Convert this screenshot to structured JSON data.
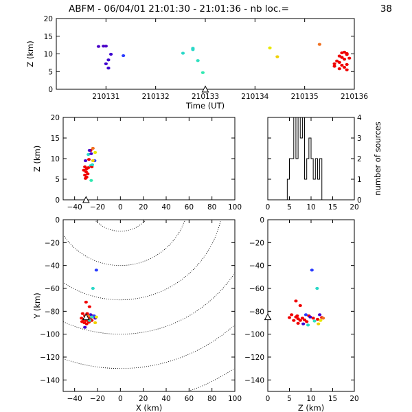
{
  "title": "ABFM - 06/04/01 21:01:30 - 21:01:36 - nb loc.=",
  "count": "38",
  "chart_data": [
    {
      "id": "time-height",
      "type": "scatter",
      "xlabel": "Time (UT)",
      "ylabel": "Z (km)",
      "xlim": [
        210130.0,
        210136.0
      ],
      "ylim": [
        0,
        20
      ],
      "xticks": [
        210131,
        210132,
        210133,
        210134,
        210135,
        210136
      ],
      "xtick_labels": [
        "210131",
        "210132",
        "210133",
        "210134",
        "210135",
        "210136"
      ],
      "yticks": [
        0,
        5,
        10,
        15,
        20
      ],
      "ytick_labels": [
        "0",
        "5",
        "10",
        "15",
        "20"
      ],
      "station_marker": {
        "x": 210133.0,
        "y": 0
      },
      "points": [
        {
          "x": 210130.85,
          "y": 12.1,
          "c": "#4a00c8"
        },
        {
          "x": 210130.95,
          "y": 12.2,
          "c": "#4a00c8"
        },
        {
          "x": 210131.0,
          "y": 12.2,
          "c": "#4a00c8"
        },
        {
          "x": 210131.1,
          "y": 9.9,
          "c": "#3c00d0"
        },
        {
          "x": 210131.05,
          "y": 8.3,
          "c": "#3c00d0"
        },
        {
          "x": 210131.0,
          "y": 7.2,
          "c": "#3c00d0"
        },
        {
          "x": 210131.05,
          "y": 6.0,
          "c": "#3c00d0"
        },
        {
          "x": 210131.35,
          "y": 9.5,
          "c": "#2a3cff"
        },
        {
          "x": 210132.55,
          "y": 10.2,
          "c": "#2ad8c8"
        },
        {
          "x": 210132.75,
          "y": 11.2,
          "c": "#2ad8c8"
        },
        {
          "x": 210132.75,
          "y": 11.6,
          "c": "#2ad8c8"
        },
        {
          "x": 210132.85,
          "y": 8.1,
          "c": "#30e0c0"
        },
        {
          "x": 210132.95,
          "y": 4.7,
          "c": "#30e8b0"
        },
        {
          "x": 210134.3,
          "y": 11.7,
          "c": "#e8e800"
        },
        {
          "x": 210134.45,
          "y": 9.2,
          "c": "#f0d000"
        },
        {
          "x": 210135.3,
          "y": 12.7,
          "c": "#f07020"
        },
        {
          "x": 210135.75,
          "y": 10.3,
          "c": "#f00000"
        },
        {
          "x": 210135.8,
          "y": 10.5,
          "c": "#f00000"
        },
        {
          "x": 210135.85,
          "y": 9.8,
          "c": "#f00000"
        },
        {
          "x": 210135.7,
          "y": 9.4,
          "c": "#f00000"
        },
        {
          "x": 210135.75,
          "y": 9.0,
          "c": "#f00000"
        },
        {
          "x": 210135.8,
          "y": 8.5,
          "c": "#f00000"
        },
        {
          "x": 210135.65,
          "y": 8.0,
          "c": "#f00000"
        },
        {
          "x": 210135.7,
          "y": 7.6,
          "c": "#f00000"
        },
        {
          "x": 210135.6,
          "y": 7.2,
          "c": "#f00000"
        },
        {
          "x": 210135.75,
          "y": 6.8,
          "c": "#f00000"
        },
        {
          "x": 210135.85,
          "y": 7.0,
          "c": "#f00000"
        },
        {
          "x": 210135.8,
          "y": 6.2,
          "c": "#f00000"
        },
        {
          "x": 210135.7,
          "y": 5.8,
          "c": "#f00000"
        },
        {
          "x": 210135.85,
          "y": 5.5,
          "c": "#f00000"
        },
        {
          "x": 210135.6,
          "y": 6.5,
          "c": "#f00000"
        },
        {
          "x": 210135.9,
          "y": 8.8,
          "c": "#f00000"
        },
        {
          "x": 210135.85,
          "y": 10.1,
          "c": "#f00000"
        }
      ]
    },
    {
      "id": "xz",
      "type": "scatter",
      "xlabel": "",
      "ylabel": "Z (km)",
      "xlim": [
        -50,
        100
      ],
      "ylim": [
        0,
        20
      ],
      "xticks": [
        -40,
        -20,
        0,
        20,
        40,
        60,
        80,
        100
      ],
      "xtick_labels": [
        "−40",
        "−20",
        "0",
        "20",
        "40",
        "60",
        "80",
        "100"
      ],
      "yticks": [
        0,
        5,
        10,
        15,
        20
      ],
      "ytick_labels": [
        "0",
        "5",
        "10",
        "15",
        "20"
      ],
      "station_marker": {
        "x": -30,
        "y": 0
      },
      "points": [
        {
          "x": -30.5,
          "y": 9.5,
          "c": "#4a00c8"
        },
        {
          "x": -28.0,
          "y": 11.0,
          "c": "#2ad8c8"
        },
        {
          "x": -26.0,
          "y": 12.0,
          "c": "#f00000"
        },
        {
          "x": -24.0,
          "y": 12.5,
          "c": "#f07020"
        },
        {
          "x": -22.0,
          "y": 11.5,
          "c": "#e8e800"
        },
        {
          "x": -25.5,
          "y": 11.2,
          "c": "#3c00d0"
        },
        {
          "x": -22.5,
          "y": 9.5,
          "c": "#2a3cff"
        },
        {
          "x": -27.5,
          "y": 9.8,
          "c": "#f00000"
        },
        {
          "x": -26.0,
          "y": 8.3,
          "c": "#30e0c0"
        },
        {
          "x": -24.0,
          "y": 9.5,
          "c": "#f0d000"
        },
        {
          "x": -31.0,
          "y": 8.0,
          "c": "#f00000"
        },
        {
          "x": -29.5,
          "y": 7.5,
          "c": "#f00000"
        },
        {
          "x": -32.0,
          "y": 7.2,
          "c": "#f00000"
        },
        {
          "x": -30.0,
          "y": 6.8,
          "c": "#f00000"
        },
        {
          "x": -28.5,
          "y": 6.3,
          "c": "#f00000"
        },
        {
          "x": -31.0,
          "y": 6.0,
          "c": "#f00000"
        },
        {
          "x": -29.5,
          "y": 5.5,
          "c": "#f00000"
        },
        {
          "x": -30.5,
          "y": 5.2,
          "c": "#f00000"
        },
        {
          "x": -28.0,
          "y": 7.8,
          "c": "#f00000"
        },
        {
          "x": -25.0,
          "y": 8.0,
          "c": "#f00000"
        },
        {
          "x": -24.5,
          "y": 8.5,
          "c": "#2ad8c8"
        },
        {
          "x": -27.0,
          "y": 12.0,
          "c": "#4a00c8"
        },
        {
          "x": -25.5,
          "y": 4.7,
          "c": "#30e8b0"
        }
      ]
    },
    {
      "id": "histogram",
      "type": "bar",
      "xlabel": "",
      "ylabel": "number of sources",
      "xlim": [
        0,
        20
      ],
      "ylim": [
        0,
        4
      ],
      "xticks": [
        0,
        5,
        10,
        15,
        20
      ],
      "xtick_labels": [
        "0",
        "5",
        "10",
        "15",
        "20"
      ],
      "yticks": [
        0,
        1,
        2,
        3,
        4
      ],
      "ytick_labels": [
        "0",
        "1",
        "2",
        "3",
        "4"
      ],
      "bin_width": 0.5,
      "bin_starts": [
        4.5,
        5.0,
        5.5,
        6.0,
        6.5,
        7.0,
        7.5,
        8.0,
        8.5,
        9.0,
        9.5,
        10.0,
        10.5,
        11.0,
        11.5,
        12.0,
        12.5
      ],
      "values": [
        1,
        2,
        2,
        4,
        2,
        4,
        3,
        4,
        1,
        2,
        3,
        2,
        1,
        2,
        1,
        2,
        0
      ]
    },
    {
      "id": "xy",
      "type": "scatter",
      "xlabel": "X (km)",
      "ylabel": "Y (km)",
      "xlim": [
        -50,
        100
      ],
      "ylim": [
        -150,
        0
      ],
      "xticks": [
        -40,
        -20,
        0,
        20,
        40,
        60,
        80,
        100
      ],
      "xtick_labels": [
        "−40",
        "−20",
        "0",
        "20",
        "40",
        "60",
        "80",
        "100"
      ],
      "yticks": [
        -140,
        -120,
        -100,
        -80,
        -60,
        -40,
        -20,
        0
      ],
      "ytick_labels": [
        "−140",
        "−120",
        "−100",
        "−80",
        "−60",
        "−40",
        "−20",
        "0"
      ],
      "range_rings": {
        "center": [
          0,
          20
        ],
        "radii": [
          30,
          60,
          90,
          120,
          150,
          180
        ]
      },
      "station_marker": {
        "x": -30,
        "y": -85
      },
      "points": [
        {
          "x": -21.0,
          "y": -44.0,
          "c": "#2a3cff"
        },
        {
          "x": -24.0,
          "y": -60.0,
          "c": "#2ad8c8"
        },
        {
          "x": -30.0,
          "y": -72.0,
          "c": "#f00000"
        },
        {
          "x": -27.0,
          "y": -76.0,
          "c": "#f00000"
        },
        {
          "x": -33.0,
          "y": -82.0,
          "c": "#f00000"
        },
        {
          "x": -31.0,
          "y": -84.0,
          "c": "#f00000"
        },
        {
          "x": -29.0,
          "y": -85.0,
          "c": "#f00000"
        },
        {
          "x": -34.0,
          "y": -86.0,
          "c": "#f00000"
        },
        {
          "x": -32.0,
          "y": -87.0,
          "c": "#f00000"
        },
        {
          "x": -30.0,
          "y": -88.0,
          "c": "#f00000"
        },
        {
          "x": -28.0,
          "y": -87.5,
          "c": "#f00000"
        },
        {
          "x": -26.0,
          "y": -86.0,
          "c": "#f00000"
        },
        {
          "x": -33.5,
          "y": -89.0,
          "c": "#f00000"
        },
        {
          "x": -31.5,
          "y": -90.0,
          "c": "#f00000"
        },
        {
          "x": -29.5,
          "y": -91.0,
          "c": "#f00000"
        },
        {
          "x": -27.5,
          "y": -89.5,
          "c": "#f00000"
        },
        {
          "x": -25.0,
          "y": -88.0,
          "c": "#f00000"
        },
        {
          "x": -24.0,
          "y": -84.0,
          "c": "#f00000"
        },
        {
          "x": -22.0,
          "y": -86.0,
          "c": "#4a00c8"
        },
        {
          "x": -26.0,
          "y": -83.0,
          "c": "#3c00d0"
        },
        {
          "x": -23.0,
          "y": -84.0,
          "c": "#2a3cff"
        },
        {
          "x": -25.0,
          "y": -85.0,
          "c": "#30e0c0"
        },
        {
          "x": -21.0,
          "y": -85.0,
          "c": "#e8e800"
        },
        {
          "x": -22.0,
          "y": -90.0,
          "c": "#f0d000"
        },
        {
          "x": -31.0,
          "y": -94.0,
          "c": "#3c00d0"
        },
        {
          "x": -28.0,
          "y": -84.0,
          "c": "#f07020"
        },
        {
          "x": -27.0,
          "y": -88.0,
          "c": "#2ad8c8"
        },
        {
          "x": -29.0,
          "y": -82.0,
          "c": "#f00000"
        }
      ]
    },
    {
      "id": "zy",
      "type": "scatter",
      "xlabel": "Z (km)",
      "ylabel": "",
      "xlim": [
        0,
        20
      ],
      "ylim": [
        -150,
        0
      ],
      "xticks": [
        0,
        5,
        10,
        15,
        20
      ],
      "xtick_labels": [
        "0",
        "5",
        "10",
        "15",
        "20"
      ],
      "yticks": [
        -140,
        -120,
        -100,
        -80,
        -60,
        -40,
        -20,
        0
      ],
      "ytick_labels": [
        "−140",
        "−120",
        "−100",
        "−80",
        "−60",
        "−40",
        "−20",
        "0"
      ],
      "station_marker": {
        "x": 0,
        "y": -85
      },
      "points": [
        {
          "x": 10.2,
          "y": -44.0,
          "c": "#2a3cff"
        },
        {
          "x": 11.4,
          "y": -60.0,
          "c": "#2ad8c8"
        },
        {
          "x": 6.5,
          "y": -71.0,
          "c": "#f00000"
        },
        {
          "x": 7.5,
          "y": -75.0,
          "c": "#f00000"
        },
        {
          "x": 5.5,
          "y": -83.0,
          "c": "#f00000"
        },
        {
          "x": 6.5,
          "y": -85.0,
          "c": "#f00000"
        },
        {
          "x": 7.0,
          "y": -86.5,
          "c": "#f00000"
        },
        {
          "x": 5.0,
          "y": -85.5,
          "c": "#f00000"
        },
        {
          "x": 6.0,
          "y": -88.0,
          "c": "#f00000"
        },
        {
          "x": 7.5,
          "y": -88.0,
          "c": "#f00000"
        },
        {
          "x": 8.0,
          "y": -86.0,
          "c": "#f00000"
        },
        {
          "x": 8.5,
          "y": -87.5,
          "c": "#f00000"
        },
        {
          "x": 9.0,
          "y": -89.0,
          "c": "#f00000"
        },
        {
          "x": 7.0,
          "y": -90.5,
          "c": "#f00000"
        },
        {
          "x": 9.5,
          "y": -84.0,
          "c": "#f00000"
        },
        {
          "x": 10.5,
          "y": -86.0,
          "c": "#f00000"
        },
        {
          "x": 11.5,
          "y": -87.0,
          "c": "#f00000"
        },
        {
          "x": 12.5,
          "y": -85.5,
          "c": "#f00000"
        },
        {
          "x": 12.0,
          "y": -83.0,
          "c": "#4a00c8"
        },
        {
          "x": 9.8,
          "y": -85.0,
          "c": "#3c00d0"
        },
        {
          "x": 8.8,
          "y": -83.0,
          "c": "#2a3cff"
        },
        {
          "x": 10.8,
          "y": -88.5,
          "c": "#30e0c0"
        },
        {
          "x": 11.7,
          "y": -91.0,
          "c": "#f0d000"
        },
        {
          "x": 12.2,
          "y": -88.0,
          "c": "#e8e800"
        },
        {
          "x": 8.2,
          "y": -91.0,
          "c": "#3c00d0"
        },
        {
          "x": 12.8,
          "y": -86.0,
          "c": "#f07020"
        },
        {
          "x": 9.3,
          "y": -92.0,
          "c": "#2ad8c8"
        },
        {
          "x": 6.8,
          "y": -84.0,
          "c": "#f00000"
        }
      ]
    }
  ]
}
